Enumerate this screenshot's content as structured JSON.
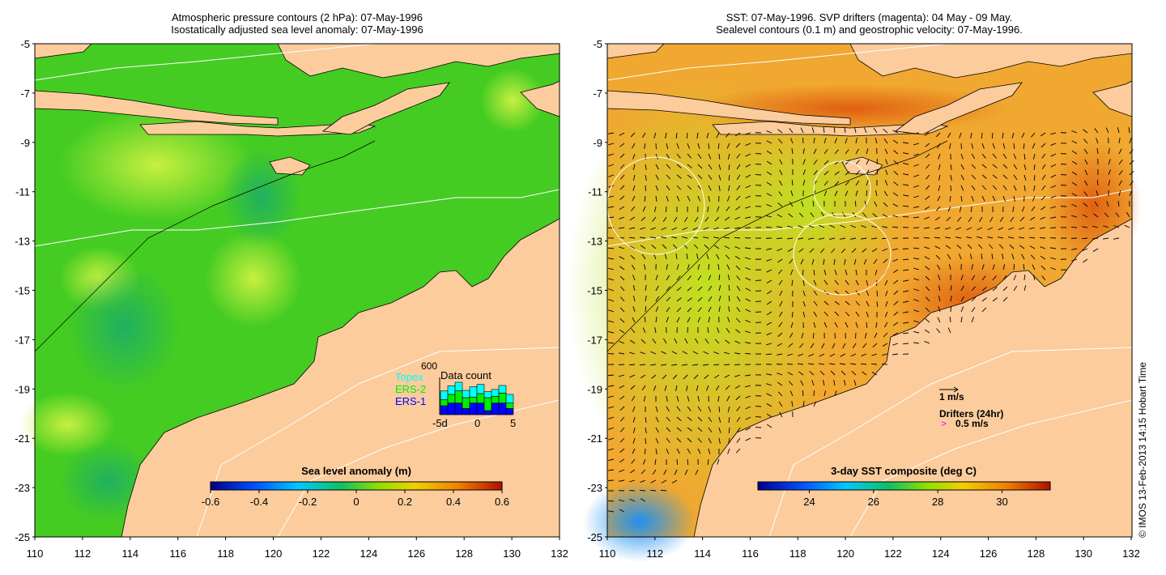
{
  "left_panel": {
    "title_line1": "Atmospheric pressure contours (2 hPa): 07-May-1996",
    "title_line2": "Isostatically adjusted sea level anomaly: 07-May-1996",
    "colorbar": {
      "label": "Sea level anomaly (m)",
      "ticks": [
        "-0.6",
        "-0.4",
        "-0.2",
        "0",
        "0.2",
        "0.4",
        "0.6"
      ],
      "colors": [
        "#00008b",
        "#0050ff",
        "#00c8ff",
        "#10c060",
        "#90e000",
        "#f0d000",
        "#f08000",
        "#b01000"
      ]
    },
    "data_count": {
      "title": "Data count",
      "max_label": "600",
      "legend": [
        "Topex",
        "ERS-2",
        "ERS-1"
      ],
      "legend_colors": [
        "#00ffff",
        "#00ee00",
        "#0000ff"
      ],
      "x_labels": [
        "-5d",
        "0",
        "5"
      ],
      "bars": [
        {
          "ers1": 143,
          "ers2": 96,
          "topex": 143
        },
        {
          "ers1": 187,
          "ers2": 139,
          "topex": 139
        },
        {
          "ers1": 187,
          "ers2": 196,
          "topex": 139
        },
        {
          "ers1": 100,
          "ers2": 174,
          "topex": 117
        },
        {
          "ers1": 187,
          "ers2": 96,
          "topex": 165
        },
        {
          "ers1": 187,
          "ers2": 152,
          "topex": 148
        },
        {
          "ers1": 65,
          "ers2": 209,
          "topex": 96
        },
        {
          "ers1": 187,
          "ers2": 109,
          "topex": 109
        },
        {
          "ers1": 187,
          "ers2": 161,
          "topex": 122
        },
        {
          "ers1": 100,
          "ers2": 87,
          "topex": 139
        }
      ],
      "max_value": 600
    }
  },
  "right_panel": {
    "title_line1": "SST: 07-May-1996. SVP drifters (magenta): 04 May - 09 May.",
    "title_line2": "Sealevel contours (0.1 m) and geostrophic velocity: 07-May-1996.",
    "colorbar": {
      "label": "3-day SST composite (deg C)",
      "ticks": [
        "24",
        "26",
        "28",
        "30"
      ],
      "colors": [
        "#00008b",
        "#0050ff",
        "#00c8ff",
        "#10c060",
        "#90e000",
        "#f0d000",
        "#f08000",
        "#b01000"
      ]
    },
    "scale_label": "1 m/s",
    "drifters_label": "Drifters (24hr)",
    "drifters_speed": "0.5 m/s",
    "drifter_symbol": ">"
  },
  "axes": {
    "lat_ticks": [
      "-5",
      "-7",
      "-9",
      "-11",
      "-13",
      "-15",
      "-17",
      "-19",
      "-21",
      "-23",
      "-25"
    ],
    "lon_ticks": [
      "110",
      "112",
      "114",
      "116",
      "118",
      "120",
      "122",
      "124",
      "126",
      "128",
      "130",
      "132"
    ]
  },
  "credit": "© IMOS 13-Feb-2013 14:15 Hobart Time"
}
